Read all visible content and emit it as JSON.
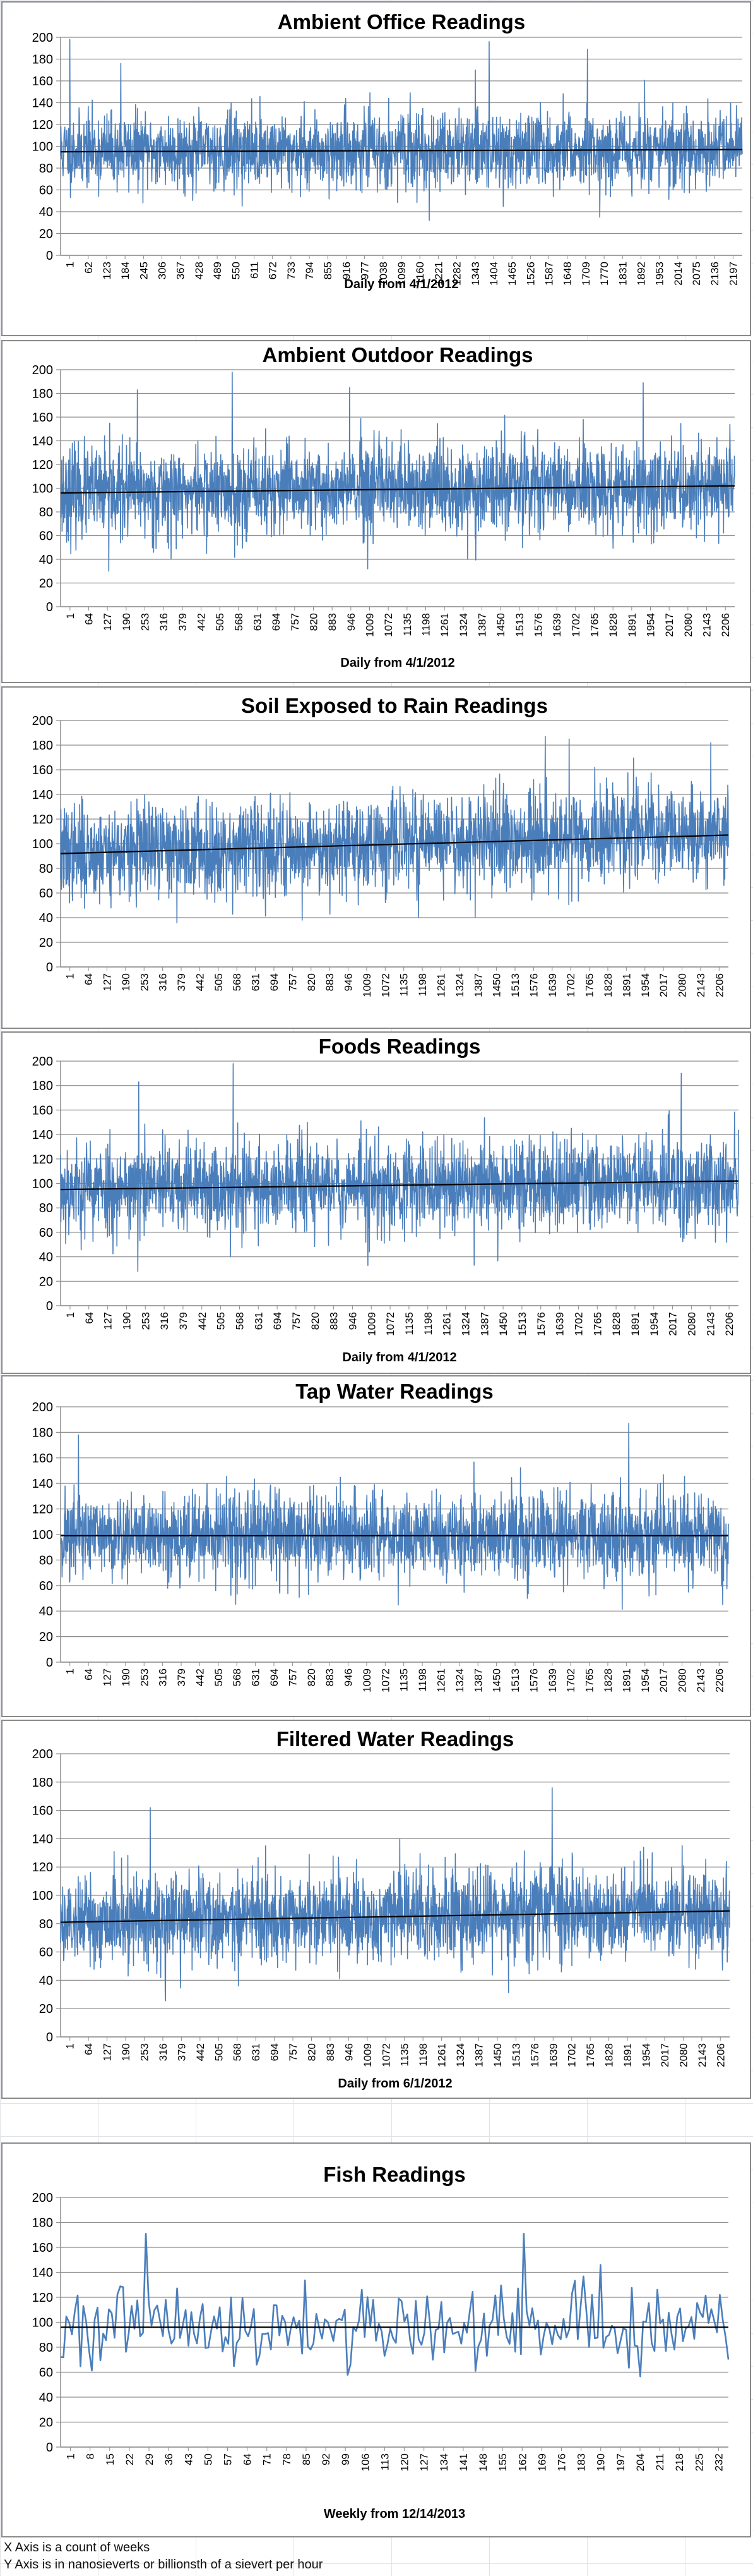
{
  "charts": [
    {
      "id": "office",
      "title": "Ambient Office Readings",
      "xlabel": "Daily from 4/1/2012",
      "ticks": [
        "1",
        "62",
        "123",
        "184",
        "245",
        "306",
        "367",
        "428",
        "489",
        "550",
        "611",
        "672",
        "733",
        "794",
        "855",
        "916",
        "977",
        "1038",
        "1099",
        "1160",
        "1221",
        "1282",
        "1343",
        "1404",
        "1465",
        "1526",
        "1587",
        "1648",
        "1709",
        "1770",
        "1831",
        "1892",
        "1953",
        "2014",
        "2075",
        "2136",
        "2197"
      ],
      "ylim": [
        0,
        200
      ],
      "n": 2220,
      "mean": [
        96,
        97
      ],
      "sd": 17,
      "trend": [
        95,
        97
      ],
      "seed": 11,
      "spikes": [
        [
          30,
          198
        ],
        [
          196,
          176
        ],
        [
          1395,
          196
        ],
        [
          1715,
          189
        ],
        [
          1200,
          32
        ],
        [
          1755,
          35
        ]
      ]
    },
    {
      "id": "outdoor",
      "title": "Ambient Outdoor Readings",
      "xlabel": "Daily from 4/1/2012",
      "ticks": [
        "1",
        "64",
        "127",
        "190",
        "253",
        "316",
        "379",
        "442",
        "505",
        "568",
        "631",
        "694",
        "757",
        "820",
        "883",
        "946",
        "1009",
        "1072",
        "1135",
        "1198",
        "1261",
        "1324",
        "1387",
        "1450",
        "1513",
        "1576",
        "1639",
        "1702",
        "1765",
        "1828",
        "1891",
        "1954",
        "2017",
        "2080",
        "2143",
        "2206"
      ],
      "ylim": [
        0,
        200
      ],
      "n": 2240,
      "mean": [
        96,
        102
      ],
      "sd": 19,
      "trend": [
        96,
        102
      ],
      "seed": 23,
      "spikes": [
        [
          570,
          198
        ],
        [
          255,
          183
        ],
        [
          960,
          185
        ],
        [
          1935,
          189
        ],
        [
          160,
          30
        ],
        [
          1020,
          32
        ]
      ]
    },
    {
      "id": "soil",
      "title": "Soil Exposed to Rain Readings",
      "xlabel": "",
      "ticks": [
        "1",
        "64",
        "127",
        "190",
        "253",
        "316",
        "379",
        "442",
        "505",
        "568",
        "631",
        "694",
        "757",
        "820",
        "883",
        "946",
        "1009",
        "1072",
        "1135",
        "1198",
        "1261",
        "1324",
        "1387",
        "1450",
        "1513",
        "1576",
        "1639",
        "1702",
        "1765",
        "1828",
        "1891",
        "1954",
        "2017",
        "2080",
        "2143",
        "2206"
      ],
      "ylim": [
        0,
        200
      ],
      "n": 2240,
      "mean": [
        92,
        108
      ],
      "sd": 19,
      "trend": [
        92,
        107
      ],
      "seed": 37,
      "spikes": [
        [
          1625,
          187
        ],
        [
          1705,
          185
        ],
        [
          2180,
          182
        ],
        [
          810,
          38
        ],
        [
          1200,
          40
        ]
      ]
    },
    {
      "id": "foods",
      "title": "Foods Readings",
      "xlabel": "Daily from 4/1/2012",
      "ticks": [
        "1",
        "64",
        "127",
        "190",
        "253",
        "316",
        "379",
        "442",
        "505",
        "568",
        "631",
        "694",
        "757",
        "820",
        "883",
        "946",
        "1009",
        "1072",
        "1135",
        "1198",
        "1261",
        "1324",
        "1387",
        "1450",
        "1513",
        "1576",
        "1639",
        "1702",
        "1765",
        "1828",
        "1891",
        "1954",
        "2017",
        "2080",
        "2143",
        "2206"
      ],
      "ylim": [
        0,
        200
      ],
      "n": 2240,
      "mean": [
        96,
        101
      ],
      "sd": 19,
      "trend": [
        95,
        102
      ],
      "seed": 53,
      "spikes": [
        [
          570,
          198
        ],
        [
          258,
          183
        ],
        [
          2050,
          190
        ],
        [
          255,
          28
        ],
        [
          1015,
          33
        ]
      ]
    },
    {
      "id": "tap",
      "title": "Tap Water Readings",
      "xlabel": "",
      "ticks": [
        "1",
        "64",
        "127",
        "190",
        "253",
        "316",
        "379",
        "442",
        "505",
        "568",
        "631",
        "694",
        "757",
        "820",
        "883",
        "946",
        "1009",
        "1072",
        "1135",
        "1198",
        "1261",
        "1324",
        "1387",
        "1450",
        "1513",
        "1576",
        "1639",
        "1702",
        "1765",
        "1828",
        "1891",
        "1954",
        "2017",
        "2080",
        "2143",
        "2206"
      ],
      "ylim": [
        0,
        200
      ],
      "n": 2240,
      "mean": [
        99,
        99
      ],
      "sd": 17,
      "trend": [
        99,
        99
      ],
      "seed": 71,
      "spikes": [
        [
          1905,
          187
        ],
        [
          60,
          178
        ],
        [
          1565,
          50
        ],
        [
          2220,
          45
        ]
      ]
    },
    {
      "id": "filtered",
      "title": "Filtered Water Readings",
      "xlabel": "Daily from 6/1/2012",
      "ticks": [
        "1",
        "64",
        "127",
        "190",
        "253",
        "316",
        "379",
        "442",
        "505",
        "568",
        "631",
        "694",
        "757",
        "820",
        "883",
        "946",
        "1009",
        "1072",
        "1135",
        "1198",
        "1261",
        "1324",
        "1387",
        "1450",
        "1513",
        "1576",
        "1639",
        "1702",
        "1765",
        "1828",
        "1891",
        "1954",
        "2017",
        "2080",
        "2143",
        "2206"
      ],
      "ylim": [
        0,
        200
      ],
      "n": 2240,
      "mean": [
        82,
        89
      ],
      "sd": 16,
      "trend": [
        81,
        89
      ],
      "seed": 89,
      "spikes": [
        [
          1645,
          176
        ],
        [
          300,
          162
        ],
        [
          350,
          33
        ]
      ]
    },
    {
      "id": "fish",
      "title": "Fish Readings",
      "xlabel": "Weekly from 12/14/2013",
      "ticks": [
        "1",
        "8",
        "15",
        "22",
        "29",
        "36",
        "43",
        "50",
        "57",
        "64",
        "71",
        "78",
        "85",
        "92",
        "99",
        "106",
        "113",
        "120",
        "127",
        "134",
        "141",
        "148",
        "155",
        "162",
        "169",
        "176",
        "183",
        "190",
        "197",
        "204",
        "211",
        "218",
        "225",
        "232"
      ],
      "ylim": [
        0,
        200
      ],
      "n": 236,
      "mean": [
        96,
        96
      ],
      "sd": 16,
      "trend": [
        96,
        96
      ],
      "seed": 101,
      "spikes": [
        [
          30,
          171
        ],
        [
          163,
          171
        ],
        [
          190,
          146
        ],
        [
          1,
          72
        ]
      ]
    }
  ],
  "notes": {
    "line1": "X Axis is a count of weeks",
    "line2": "Y Axis is in nanosieverts or billionsth of a sievert per hour"
  },
  "colors": {
    "series": "#4a7ebb",
    "trend": "#000000",
    "grid": "#8c8c8c",
    "title": "#000000"
  }
}
